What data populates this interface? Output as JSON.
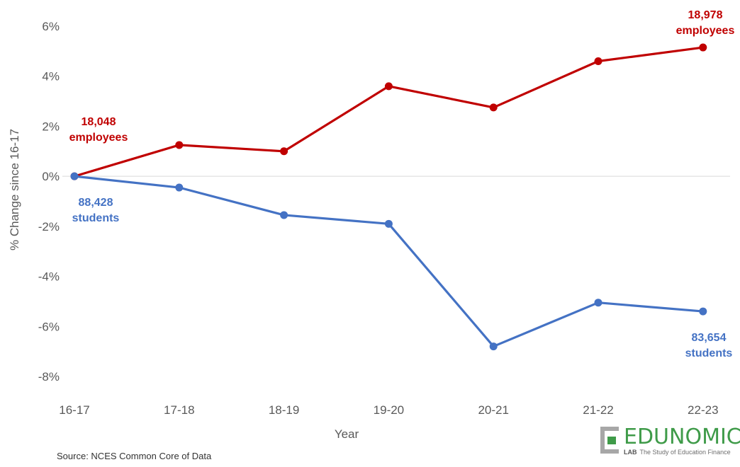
{
  "colors": {
    "employees": "#c00000",
    "students": "#4472c4",
    "axis_text": "#595959",
    "zero_line": "#d9d9d9",
    "logo": "#3f9b49"
  },
  "chart_data": {
    "type": "line",
    "xlabel": "Year",
    "ylabel": "% Change since 16-17",
    "ylim": [
      -8,
      6
    ],
    "y_ticks": [
      "6%",
      "4%",
      "2%",
      "0%",
      "-2%",
      "-4%",
      "-6%",
      "-8%"
    ],
    "y_tick_values": [
      6,
      4,
      2,
      0,
      -2,
      -4,
      -6,
      -8
    ],
    "categories": [
      "16-17",
      "17-18",
      "18-19",
      "19-20",
      "20-21",
      "21-22",
      "22-23"
    ],
    "grid": false,
    "series": [
      {
        "key": "employees",
        "values": [
          0,
          1.25,
          1.0,
          3.6,
          2.75,
          4.6,
          5.15
        ]
      },
      {
        "key": "students",
        "values": [
          0,
          -0.45,
          -1.55,
          -1.9,
          -6.8,
          -5.05,
          -5.4
        ]
      }
    ],
    "annotations": [
      {
        "series": "employees",
        "index": 0,
        "lines": [
          "18,048",
          "employees"
        ]
      },
      {
        "series": "employees",
        "index": 6,
        "lines": [
          "18,978",
          "employees"
        ]
      },
      {
        "series": "students",
        "index": 0,
        "lines": [
          "88,428",
          "students"
        ]
      },
      {
        "series": "students",
        "index": 6,
        "lines": [
          "83,654",
          "students"
        ]
      }
    ]
  },
  "source": "Source: NCES Common Core of Data",
  "logo": {
    "name": "EDUNOMICS",
    "lab": "LAB",
    "tagline": "The Study of Education Finance"
  }
}
